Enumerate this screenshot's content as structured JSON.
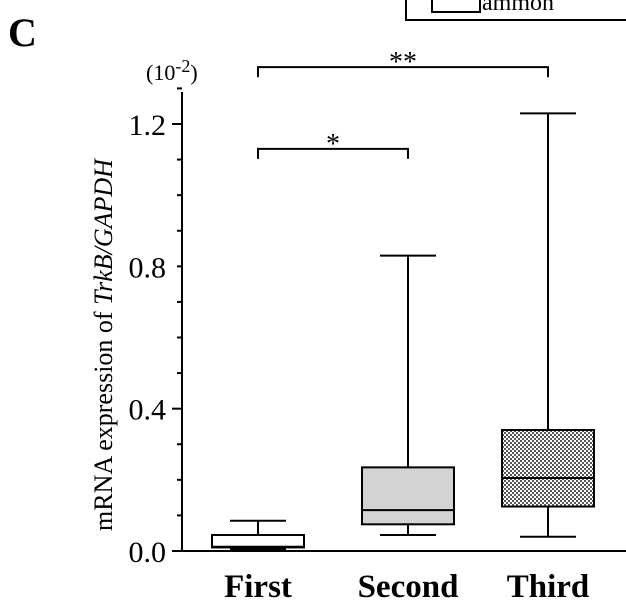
{
  "panel_letter": "C",
  "legend": {
    "entry_label": "ammon"
  },
  "chart_data": {
    "type": "box",
    "ylabel_plain": "mRNA  expression of ",
    "ylabel_italic": "TrkB/GAPDH",
    "y_multiplier_label": "(10",
    "y_multiplier_exp": "-2",
    "y_multiplier_close": ")",
    "ylim": [
      0,
      1.3
    ],
    "yticks": [
      0.0,
      0.4,
      0.8,
      1.2
    ],
    "ytick_labels": [
      "0.0",
      "0.4",
      "0.8",
      "1.2"
    ],
    "categories": [
      "First",
      "Second",
      "Third"
    ],
    "boxes": [
      {
        "category": "First",
        "min": 0.005,
        "q1": 0.01,
        "median": 0.012,
        "q3": 0.045,
        "max": 0.085,
        "fill": "#ffffff",
        "pattern": "none"
      },
      {
        "category": "Second",
        "min": 0.045,
        "q1": 0.075,
        "median": 0.115,
        "q3": 0.235,
        "max": 0.83,
        "fill": "#d3d3d3",
        "pattern": "none"
      },
      {
        "category": "Third",
        "min": 0.04,
        "q1": 0.125,
        "median": 0.205,
        "q3": 0.34,
        "max": 1.23,
        "fill": "#888888",
        "pattern": "crosshatch"
      }
    ],
    "significance": [
      {
        "from": "First",
        "to": "Second",
        "label": "*",
        "y": 1.13
      },
      {
        "from": "First",
        "to": "Third",
        "label": "**",
        "y": 1.36
      }
    ]
  }
}
